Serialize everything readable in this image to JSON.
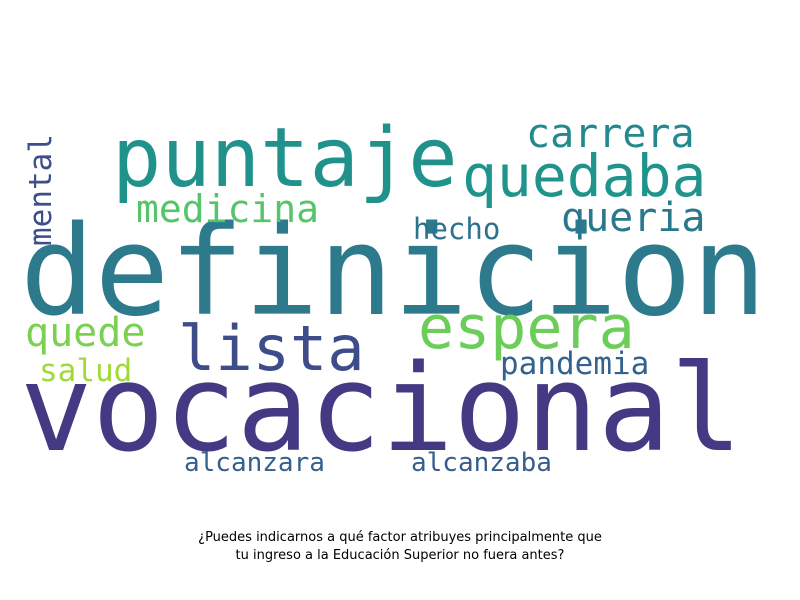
{
  "words": [
    {
      "id": "definicion",
      "text": "definicion",
      "color": "#2c7a8c"
    },
    {
      "id": "vocacional",
      "text": "vocacional",
      "color": "#443a83"
    },
    {
      "id": "puntaje",
      "text": "puntaje",
      "color": "#21918c"
    },
    {
      "id": "quedaba",
      "text": "quedaba",
      "color": "#1f948c"
    },
    {
      "id": "espera",
      "text": "espera",
      "color": "#6ccd5a"
    },
    {
      "id": "lista",
      "text": "lista",
      "color": "#3e4c8a"
    },
    {
      "id": "carrera",
      "text": "carrera",
      "color": "#23898e"
    },
    {
      "id": "medicina",
      "text": "medicina",
      "color": "#54c568"
    },
    {
      "id": "queria",
      "text": "queria",
      "color": "#2a788e"
    },
    {
      "id": "mental",
      "text": "mental",
      "color": "#3d4e8a"
    },
    {
      "id": "hecho",
      "text": "hecho",
      "color": "#2c728e"
    },
    {
      "id": "quede",
      "text": "quede",
      "color": "#7ad151"
    },
    {
      "id": "pandemia",
      "text": "pandemia",
      "color": "#33638d"
    },
    {
      "id": "salud",
      "text": "salud",
      "color": "#a0da39"
    },
    {
      "id": "alcanzara",
      "text": "alcanzara",
      "color": "#35608d"
    },
    {
      "id": "alcanzaba",
      "text": "alcanzaba",
      "color": "#365d8d"
    }
  ],
  "caption": {
    "line1": "¿Puedes indicarnos a qué factor atribuyes principalmente que",
    "line2": "tu ingreso a la Educación Superior no fuera antes?"
  }
}
